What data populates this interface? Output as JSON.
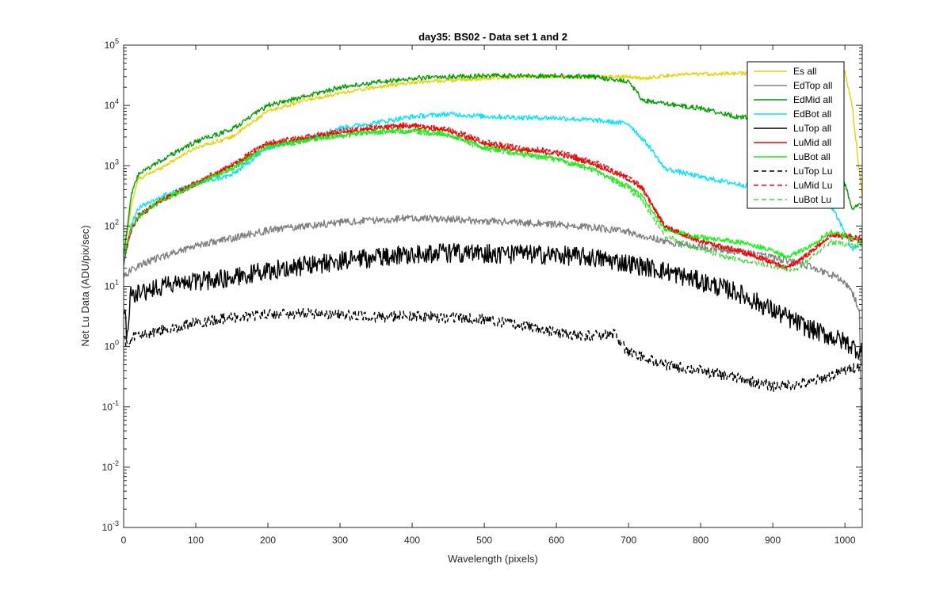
{
  "chart_data": {
    "type": "line",
    "title": "day35: BS02 - Data set 1 and 2",
    "xlabel": "Wavelength (pixels)",
    "ylabel": "Net Lu Data (ADU/pix/sec)",
    "xlim": [
      0,
      1024
    ],
    "ylim": [
      0.001,
      100000
    ],
    "yscale": "log",
    "grid": false,
    "legend_position": "top-right",
    "x_ticks": [
      0,
      100,
      200,
      300,
      400,
      500,
      600,
      700,
      800,
      900,
      1000
    ],
    "y_ticks": [
      {
        "value": 0.001,
        "base": "10",
        "exp": "-3"
      },
      {
        "value": 0.01,
        "base": "10",
        "exp": "-2"
      },
      {
        "value": 0.1,
        "base": "10",
        "exp": "-1"
      },
      {
        "value": 1,
        "base": "10",
        "exp": "0"
      },
      {
        "value": 10,
        "base": "10",
        "exp": "1"
      },
      {
        "value": 100,
        "base": "10",
        "exp": "2"
      },
      {
        "value": 1000,
        "base": "10",
        "exp": "3"
      },
      {
        "value": 10000,
        "base": "10",
        "exp": "4"
      },
      {
        "value": 100000,
        "base": "10",
        "exp": "5"
      }
    ],
    "series": [
      {
        "name": "Es  all",
        "color": "#e6d200",
        "dash": "solid",
        "noise": 0.03,
        "points": [
          [
            0,
            30
          ],
          [
            10,
            200
          ],
          [
            20,
            600
          ],
          [
            50,
            900
          ],
          [
            100,
            2000
          ],
          [
            150,
            3000
          ],
          [
            200,
            8000
          ],
          [
            250,
            12000
          ],
          [
            300,
            16000
          ],
          [
            350,
            20000
          ],
          [
            400,
            24000
          ],
          [
            450,
            26000
          ],
          [
            500,
            28000
          ],
          [
            550,
            30000
          ],
          [
            600,
            30000
          ],
          [
            650,
            30000
          ],
          [
            700,
            30000
          ],
          [
            720,
            28000
          ],
          [
            760,
            32000
          ],
          [
            800,
            33000
          ],
          [
            850,
            34000
          ],
          [
            900,
            34000
          ],
          [
            950,
            35000
          ],
          [
            1000,
            35000
          ],
          [
            1010,
            10000
          ],
          [
            1024,
            300
          ]
        ]
      },
      {
        "name": "EdTop  all",
        "color": "#808080",
        "dash": "solid",
        "noise": 0.06,
        "points": [
          [
            0,
            15
          ],
          [
            20,
            22
          ],
          [
            50,
            30
          ],
          [
            100,
            48
          ],
          [
            150,
            62
          ],
          [
            200,
            85
          ],
          [
            250,
            100
          ],
          [
            300,
            115
          ],
          [
            350,
            125
          ],
          [
            400,
            135
          ],
          [
            450,
            130
          ],
          [
            500,
            120
          ],
          [
            550,
            115
          ],
          [
            600,
            105
          ],
          [
            650,
            95
          ],
          [
            700,
            80
          ],
          [
            750,
            55
          ],
          [
            800,
            45
          ],
          [
            850,
            38
          ],
          [
            900,
            30
          ],
          [
            930,
            25
          ],
          [
            960,
            20
          ],
          [
            1000,
            12
          ],
          [
            1010,
            8
          ],
          [
            1020,
            4
          ],
          [
            1024,
            0.01
          ]
        ]
      },
      {
        "name": "EdMid  all",
        "color": "#00a000",
        "dash": "solid",
        "noise": 0.04,
        "points": [
          [
            0,
            30
          ],
          [
            10,
            300
          ],
          [
            20,
            700
          ],
          [
            50,
            1200
          ],
          [
            100,
            2500
          ],
          [
            150,
            4000
          ],
          [
            200,
            10000
          ],
          [
            250,
            14000
          ],
          [
            300,
            20000
          ],
          [
            350,
            24000
          ],
          [
            400,
            28000
          ],
          [
            450,
            30000
          ],
          [
            500,
            31000
          ],
          [
            550,
            31000
          ],
          [
            600,
            31000
          ],
          [
            650,
            30000
          ],
          [
            700,
            25000
          ],
          [
            720,
            12000
          ],
          [
            740,
            11000
          ],
          [
            800,
            9000
          ],
          [
            850,
            6500
          ],
          [
            900,
            6000
          ],
          [
            950,
            5500
          ],
          [
            980,
            3000
          ],
          [
            1000,
            500
          ],
          [
            1010,
            200
          ],
          [
            1024,
            230
          ]
        ]
      },
      {
        "name": "EdBot  all",
        "color": "#00e5ff",
        "dash": "solid",
        "noise": 0.04,
        "points": [
          [
            0,
            20
          ],
          [
            10,
            100
          ],
          [
            20,
            200
          ],
          [
            50,
            300
          ],
          [
            100,
            500
          ],
          [
            150,
            700
          ],
          [
            200,
            2000
          ],
          [
            250,
            2800
          ],
          [
            300,
            4200
          ],
          [
            350,
            5200
          ],
          [
            400,
            6500
          ],
          [
            450,
            7200
          ],
          [
            500,
            6600
          ],
          [
            550,
            6300
          ],
          [
            600,
            6200
          ],
          [
            650,
            5700
          ],
          [
            700,
            5000
          ],
          [
            730,
            2000
          ],
          [
            750,
            900
          ],
          [
            800,
            650
          ],
          [
            850,
            500
          ],
          [
            900,
            400
          ],
          [
            950,
            320
          ],
          [
            980,
            220
          ],
          [
            1000,
            80
          ],
          [
            1010,
            40
          ],
          [
            1024,
            60
          ]
        ]
      },
      {
        "name": "LuTop  all",
        "color": "#000000",
        "dash": "solid",
        "noise": 0.16,
        "points": [
          [
            0,
            5
          ],
          [
            5,
            1.5
          ],
          [
            10,
            7
          ],
          [
            50,
            10
          ],
          [
            100,
            12
          ],
          [
            150,
            14
          ],
          [
            200,
            18
          ],
          [
            250,
            22
          ],
          [
            300,
            26
          ],
          [
            350,
            30
          ],
          [
            400,
            35
          ],
          [
            450,
            36
          ],
          [
            500,
            35
          ],
          [
            550,
            34
          ],
          [
            600,
            33
          ],
          [
            650,
            30
          ],
          [
            700,
            24
          ],
          [
            750,
            18
          ],
          [
            800,
            12
          ],
          [
            850,
            8
          ],
          [
            900,
            4
          ],
          [
            950,
            2
          ],
          [
            1000,
            1.2
          ],
          [
            1024,
            0.8
          ]
        ]
      },
      {
        "name": "LuMid  all",
        "color": "#ff0000",
        "dash": "solid",
        "noise": 0.04,
        "points": [
          [
            0,
            25
          ],
          [
            10,
            80
          ],
          [
            20,
            140
          ],
          [
            50,
            250
          ],
          [
            100,
            500
          ],
          [
            150,
            1000
          ],
          [
            200,
            2300
          ],
          [
            250,
            2800
          ],
          [
            300,
            3500
          ],
          [
            350,
            4200
          ],
          [
            400,
            4500
          ],
          [
            450,
            3800
          ],
          [
            500,
            2300
          ],
          [
            550,
            1800
          ],
          [
            600,
            1600
          ],
          [
            650,
            1100
          ],
          [
            700,
            600
          ],
          [
            720,
            400
          ],
          [
            750,
            100
          ],
          [
            800,
            55
          ],
          [
            850,
            40
          ],
          [
            900,
            25
          ],
          [
            920,
            20
          ],
          [
            950,
            35
          ],
          [
            980,
            70
          ],
          [
            1000,
            70
          ],
          [
            1024,
            60
          ]
        ]
      },
      {
        "name": "LuBot  all",
        "color": "#00ff00",
        "dash": "solid",
        "noise": 0.04,
        "points": [
          [
            0,
            30
          ],
          [
            10,
            90
          ],
          [
            20,
            150
          ],
          [
            50,
            260
          ],
          [
            100,
            500
          ],
          [
            150,
            900
          ],
          [
            200,
            2100
          ],
          [
            250,
            2600
          ],
          [
            300,
            3200
          ],
          [
            350,
            3700
          ],
          [
            400,
            3800
          ],
          [
            450,
            3300
          ],
          [
            500,
            2000
          ],
          [
            550,
            1600
          ],
          [
            600,
            1300
          ],
          [
            650,
            900
          ],
          [
            700,
            450
          ],
          [
            720,
            300
          ],
          [
            750,
            90
          ],
          [
            800,
            65
          ],
          [
            850,
            55
          ],
          [
            900,
            40
          ],
          [
            920,
            30
          ],
          [
            950,
            45
          ],
          [
            980,
            80
          ],
          [
            1000,
            70
          ],
          [
            1024,
            55
          ]
        ]
      },
      {
        "name": "LuTop  Lu",
        "color": "#000000",
        "dash": "dashed",
        "noise": 0.09,
        "points": [
          [
            0,
            1.2
          ],
          [
            10,
            1.4
          ],
          [
            50,
            1.8
          ],
          [
            100,
            2.5
          ],
          [
            150,
            3
          ],
          [
            200,
            3.4
          ],
          [
            250,
            3.5
          ],
          [
            300,
            3.3
          ],
          [
            350,
            3.1
          ],
          [
            400,
            3.2
          ],
          [
            450,
            3.0
          ],
          [
            500,
            2.8
          ],
          [
            550,
            2.3
          ],
          [
            600,
            1.7
          ],
          [
            650,
            1.5
          ],
          [
            680,
            1.6
          ],
          [
            700,
            0.8
          ],
          [
            750,
            0.5
          ],
          [
            800,
            0.4
          ],
          [
            850,
            0.3
          ],
          [
            900,
            0.22
          ],
          [
            950,
            0.25
          ],
          [
            1000,
            0.4
          ],
          [
            1024,
            0.5
          ]
        ]
      },
      {
        "name": "LuMid  Lu",
        "color": "#ff0000",
        "dash": "dashed",
        "noise": 0.04,
        "points": [
          [
            0,
            25
          ],
          [
            10,
            90
          ],
          [
            20,
            150
          ],
          [
            50,
            270
          ],
          [
            100,
            520
          ],
          [
            150,
            1050
          ],
          [
            200,
            2400
          ],
          [
            250,
            3000
          ],
          [
            300,
            3700
          ],
          [
            350,
            4500
          ],
          [
            400,
            4800
          ],
          [
            450,
            4100
          ],
          [
            500,
            2500
          ],
          [
            550,
            2000
          ],
          [
            600,
            1700
          ],
          [
            650,
            1200
          ],
          [
            700,
            650
          ],
          [
            720,
            420
          ],
          [
            750,
            100
          ],
          [
            800,
            55
          ],
          [
            850,
            40
          ],
          [
            900,
            25
          ],
          [
            920,
            20
          ],
          [
            950,
            35
          ],
          [
            980,
            70
          ],
          [
            1000,
            65
          ],
          [
            1024,
            55
          ]
        ]
      },
      {
        "name": "LuBot  Lu",
        "color": "#33dd33",
        "dash": "dashed",
        "noise": 0.04,
        "points": [
          [
            0,
            30
          ],
          [
            10,
            85
          ],
          [
            20,
            140
          ],
          [
            50,
            250
          ],
          [
            100,
            480
          ],
          [
            150,
            880
          ],
          [
            200,
            2000
          ],
          [
            250,
            2500
          ],
          [
            300,
            3100
          ],
          [
            350,
            3600
          ],
          [
            400,
            3700
          ],
          [
            450,
            3200
          ],
          [
            500,
            1900
          ],
          [
            550,
            1550
          ],
          [
            600,
            1250
          ],
          [
            650,
            850
          ],
          [
            700,
            420
          ],
          [
            720,
            250
          ],
          [
            750,
            70
          ],
          [
            800,
            40
          ],
          [
            850,
            28
          ],
          [
            900,
            22
          ],
          [
            930,
            18
          ],
          [
            950,
            28
          ],
          [
            980,
            55
          ],
          [
            1000,
            50
          ],
          [
            1024,
            45
          ]
        ]
      }
    ]
  }
}
